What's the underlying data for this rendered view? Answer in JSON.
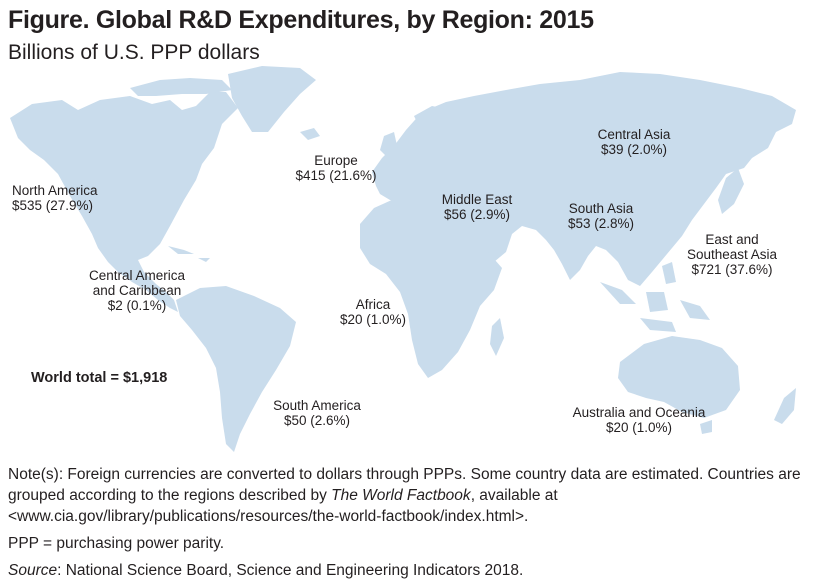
{
  "title": "Figure. Global R&D Expenditures, by Region: 2015",
  "subtitle": "Billions of U.S. PPP dollars",
  "chart_data": {
    "type": "map",
    "unit": "Billions of U.S. PPP dollars",
    "regions": [
      {
        "name": "North America",
        "value_text": "$535 (27.9%)",
        "value": 535,
        "share_pct": 27.9
      },
      {
        "name": "Central America and Caribbean",
        "name_lines": [
          "Central America",
          "and Caribbean"
        ],
        "value_text": "$2 (0.1%)",
        "value": 2,
        "share_pct": 0.1
      },
      {
        "name": "South America",
        "value_text": "$50 (2.6%)",
        "value": 50,
        "share_pct": 2.6
      },
      {
        "name": "Europe",
        "value_text": "$415 (21.6%)",
        "value": 415,
        "share_pct": 21.6
      },
      {
        "name": "Africa",
        "value_text": "$20 (1.0%)",
        "value": 20,
        "share_pct": 1.0
      },
      {
        "name": "Middle East",
        "value_text": "$56 (2.9%)",
        "value": 56,
        "share_pct": 2.9
      },
      {
        "name": "Central Asia",
        "value_text": "$39 (2.0%)",
        "value": 39,
        "share_pct": 2.0
      },
      {
        "name": "South Asia",
        "value_text": "$53 (2.8%)",
        "value": 53,
        "share_pct": 2.8
      },
      {
        "name": "East and Southeast Asia",
        "name_lines": [
          "East and",
          "Southeast Asia"
        ],
        "value_text": "$721 (37.6%)",
        "value": 721,
        "share_pct": 37.6
      },
      {
        "name": "Australia and Oceania",
        "value_text": "$20 (1.0%)",
        "value": 20,
        "share_pct": 1.0
      }
    ],
    "total_text": "World total = $1,918",
    "total": 1918,
    "land_color": "#c9dcec"
  },
  "notes": {
    "note_prefix": "Note(s): Foreign currencies are converted to dollars through PPPs. Some country data are estimated. Countries are grouped according to the regions described by ",
    "note_italic": "The World Factbook",
    "note_suffix": ", available at <www.cia.gov/library/publications/resources/the-world-factbook/index.html>.",
    "ppp": "PPP = purchasing power parity.",
    "source_label": "Source",
    "source_text": ": National Science Board, Science and Engineering Indicators 2018."
  }
}
